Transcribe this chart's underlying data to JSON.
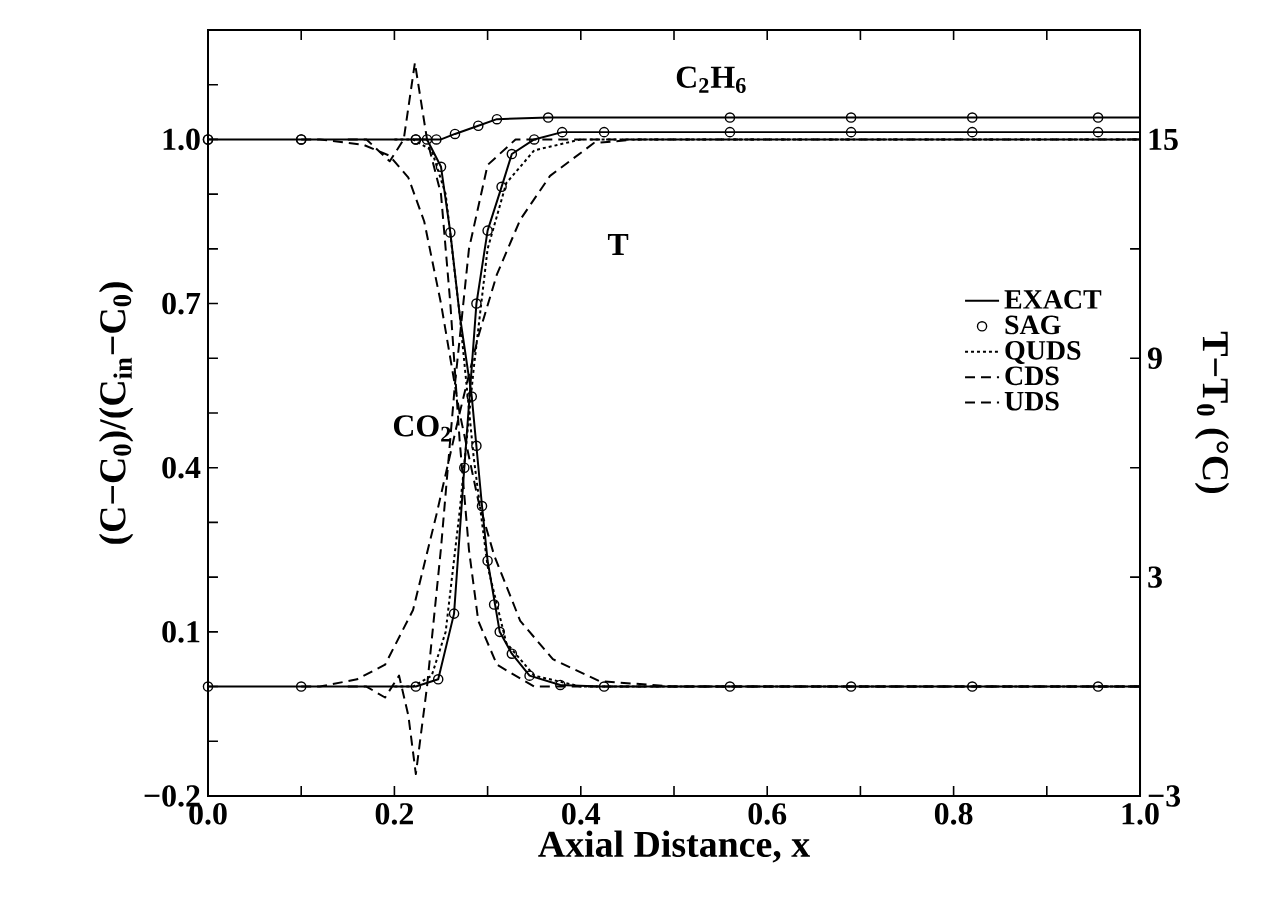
{
  "chart_data": {
    "type": "line",
    "xlabel": "Axial Distance, x",
    "ylabel": "(C−C$_{0}$)/(C$_{in}$−C$_{0}$)",
    "y2label": "T−T$_{0}$  (°C)",
    "xlim": [
      0,
      1
    ],
    "ylim": [
      -0.2,
      1.2
    ],
    "y2lim": [
      -3,
      18
    ],
    "xticks": [
      {
        "value": 0,
        "label": "0.0"
      },
      {
        "value": 0.1,
        "label": null
      },
      {
        "value": 0.2,
        "label": "0.2"
      },
      {
        "value": 0.3,
        "label": null
      },
      {
        "value": 0.4,
        "label": "0.4"
      },
      {
        "value": 0.5,
        "label": null
      },
      {
        "value": 0.6,
        "label": "0.6"
      },
      {
        "value": 0.7,
        "label": null
      },
      {
        "value": 0.8,
        "label": "0.8"
      },
      {
        "value": 0.9,
        "label": null
      },
      {
        "value": 1.0,
        "label": "1.0"
      }
    ],
    "yticks": [
      {
        "value": -0.2,
        "label": "−0.2"
      },
      {
        "value": -0.1,
        "label": null
      },
      {
        "value": 0,
        "label": null
      },
      {
        "value": 0.1,
        "label": "0.1"
      },
      {
        "value": 0.2,
        "label": null
      },
      {
        "value": 0.3,
        "label": null
      },
      {
        "value": 0.4,
        "label": "0.4"
      },
      {
        "value": 0.5,
        "label": null
      },
      {
        "value": 0.6,
        "label": null
      },
      {
        "value": 0.7,
        "label": "0.7"
      },
      {
        "value": 0.8,
        "label": null
      },
      {
        "value": 0.9,
        "label": null
      },
      {
        "value": 1.0,
        "label": "1.0"
      },
      {
        "value": 1.1,
        "label": null
      }
    ],
    "y2ticks": [
      {
        "value": -3,
        "label": "−3"
      },
      {
        "value": 0,
        "label": null
      },
      {
        "value": 3,
        "label": "3"
      },
      {
        "value": 6,
        "label": null
      },
      {
        "value": 9,
        "label": "9"
      },
      {
        "value": 12,
        "label": null
      },
      {
        "value": 15,
        "label": "15"
      }
    ],
    "legend": "right",
    "grid": false,
    "annotations": [
      "C$_{2}$H$_{6}$",
      "T",
      "CO$_{2}$"
    ],
    "series": [
      {
        "name": "EXACT",
        "line_style": "solid",
        "marker": "none",
        "color": "#000000",
        "x": [
          0,
          0.2,
          0.235,
          0.25,
          0.26,
          0.27,
          0.283,
          0.294,
          0.3,
          0.313,
          0.326,
          0.345,
          0.378,
          0.42,
          1.0
        ],
        "values": [
          1,
          1,
          1,
          0.95,
          0.83,
          0.68,
          0.53,
          0.33,
          0.23,
          0.1,
          0.06,
          0.02,
          0.003,
          0,
          0
        ]
      },
      {
        "name": "SAG",
        "type": "scatter",
        "marker": "circle",
        "color": "#000000",
        "x": [
          0,
          0.1,
          0.223,
          0.235,
          0.25,
          0.26,
          0.283,
          0.288,
          0.294,
          0.3,
          0.307,
          0.313,
          0.326,
          0.345,
          0.378,
          0.425,
          0.56,
          0.69,
          0.82,
          0.955
        ],
        "values": [
          1,
          1,
          1,
          1,
          0.95,
          0.83,
          0.53,
          0.44,
          0.33,
          0.23,
          0.15,
          0.1,
          0.06,
          0.02,
          0.003,
          0,
          0,
          0,
          0,
          0
        ]
      },
      {
        "name": "QUDS",
        "line_style": "dotted",
        "marker": "none",
        "color": "#000000",
        "x": [
          0.2,
          0.22,
          0.24,
          0.255,
          0.27,
          0.285,
          0.3,
          0.32,
          0.35,
          0.4,
          1.0
        ],
        "values": [
          1,
          1,
          0.98,
          0.9,
          0.68,
          0.42,
          0.22,
          0.08,
          0.02,
          0,
          0
        ]
      },
      {
        "name": "CDS",
        "line_style": "dashed",
        "marker": "none",
        "color": "#000000",
        "x": [
          0.15,
          0.17,
          0.195,
          0.21,
          0.222,
          0.235,
          0.25,
          0.26,
          0.27,
          0.28,
          0.29,
          0.31,
          0.35,
          1.0
        ],
        "values": [
          1,
          1,
          0.96,
          1.0,
          1.14,
          1.0,
          0.9,
          0.7,
          0.45,
          0.25,
          0.12,
          0.04,
          0,
          0
        ]
      },
      {
        "name": "UDS",
        "line_style": "dashed",
        "marker": "none",
        "color": "#000000",
        "x": [
          0.1,
          0.12,
          0.167,
          0.195,
          0.215,
          0.232,
          0.25,
          0.27,
          0.29,
          0.307,
          0.335,
          0.37,
          0.42,
          0.5,
          1.0
        ],
        "values": [
          1,
          1,
          0.99,
          0.97,
          0.93,
          0.85,
          0.7,
          0.5,
          0.34,
          0.24,
          0.12,
          0.05,
          0.01,
          0,
          0
        ]
      },
      {
        "line_style": "solid",
        "marker": "none",
        "color": "#000000",
        "x": [
          0.22,
          0.23,
          0.25,
          0.265,
          0.29,
          0.31,
          0.365,
          1.0
        ],
        "values": [
          1,
          1,
          1.0,
          1.01,
          1.025,
          1.037,
          1.04,
          1.04
        ]
      },
      {
        "type": "scatter",
        "marker": "circle",
        "color": "#000000",
        "x": [
          0,
          0.1,
          0.223,
          0.245,
          0.265,
          0.29,
          0.31,
          0.365,
          0.56,
          0.69,
          0.82,
          0.955
        ],
        "values": [
          1,
          1,
          1,
          1.0,
          1.01,
          1.025,
          1.037,
          1.04,
          1.04,
          1.04,
          1.04,
          1.04
        ]
      },
      {
        "axis": "y2",
        "line_style": "solid",
        "marker": "none",
        "color": "#000000",
        "x": [
          0,
          0.223,
          0.247,
          0.264,
          0.275,
          0.288,
          0.3,
          0.315,
          0.326,
          0.35,
          0.38,
          1.0
        ],
        "values": [
          0,
          0,
          0.2,
          2,
          6,
          10.5,
          12.5,
          13.7,
          14.6,
          15,
          15.2,
          15.2
        ]
      },
      {
        "type": "scatter",
        "axis": "y2",
        "marker": "circle",
        "color": "#000000",
        "x": [
          0,
          0.1,
          0.223,
          0.247,
          0.264,
          0.275,
          0.288,
          0.3,
          0.315,
          0.326,
          0.35,
          0.38,
          0.425,
          0.56,
          0.69,
          0.82,
          0.955
        ],
        "values": [
          0,
          0,
          0,
          0.2,
          2,
          6,
          10.5,
          12.5,
          13.7,
          14.6,
          15,
          15.2,
          15.2,
          15.2,
          15.2,
          15.2,
          15.2
        ]
      },
      {
        "axis": "y2",
        "line_style": "dotted",
        "marker": "none",
        "color": "#000000",
        "x": [
          0.2,
          0.22,
          0.24,
          0.255,
          0.27,
          0.285,
          0.3,
          0.32,
          0.35,
          0.4,
          1.0
        ],
        "values": [
          0,
          0,
          0.3,
          1.5,
          4.8,
          8.7,
          12,
          13.8,
          14.7,
          15,
          15
        ]
      },
      {
        "axis": "y2",
        "line_style": "dashed",
        "marker": "none",
        "color": "#000000",
        "x": [
          0.15,
          0.17,
          0.19,
          0.205,
          0.215,
          0.223,
          0.235,
          0.25,
          0.265,
          0.28,
          0.3,
          0.33,
          1.0
        ],
        "values": [
          0,
          0,
          -0.3,
          0.3,
          -0.8,
          -2.4,
          0,
          3.8,
          8.3,
          12,
          14.3,
          15,
          15
        ]
      },
      {
        "axis": "y2",
        "line_style": "dashed",
        "marker": "none",
        "color": "#000000",
        "x": [
          0.1,
          0.12,
          0.16,
          0.19,
          0.22,
          0.245,
          0.27,
          0.29,
          0.31,
          0.335,
          0.367,
          0.414,
          0.46,
          1.0
        ],
        "values": [
          0,
          0,
          0.2,
          0.6,
          2.1,
          4.7,
          7.5,
          9.6,
          11.3,
          12.8,
          14,
          14.9,
          15,
          15
        ]
      }
    ]
  }
}
